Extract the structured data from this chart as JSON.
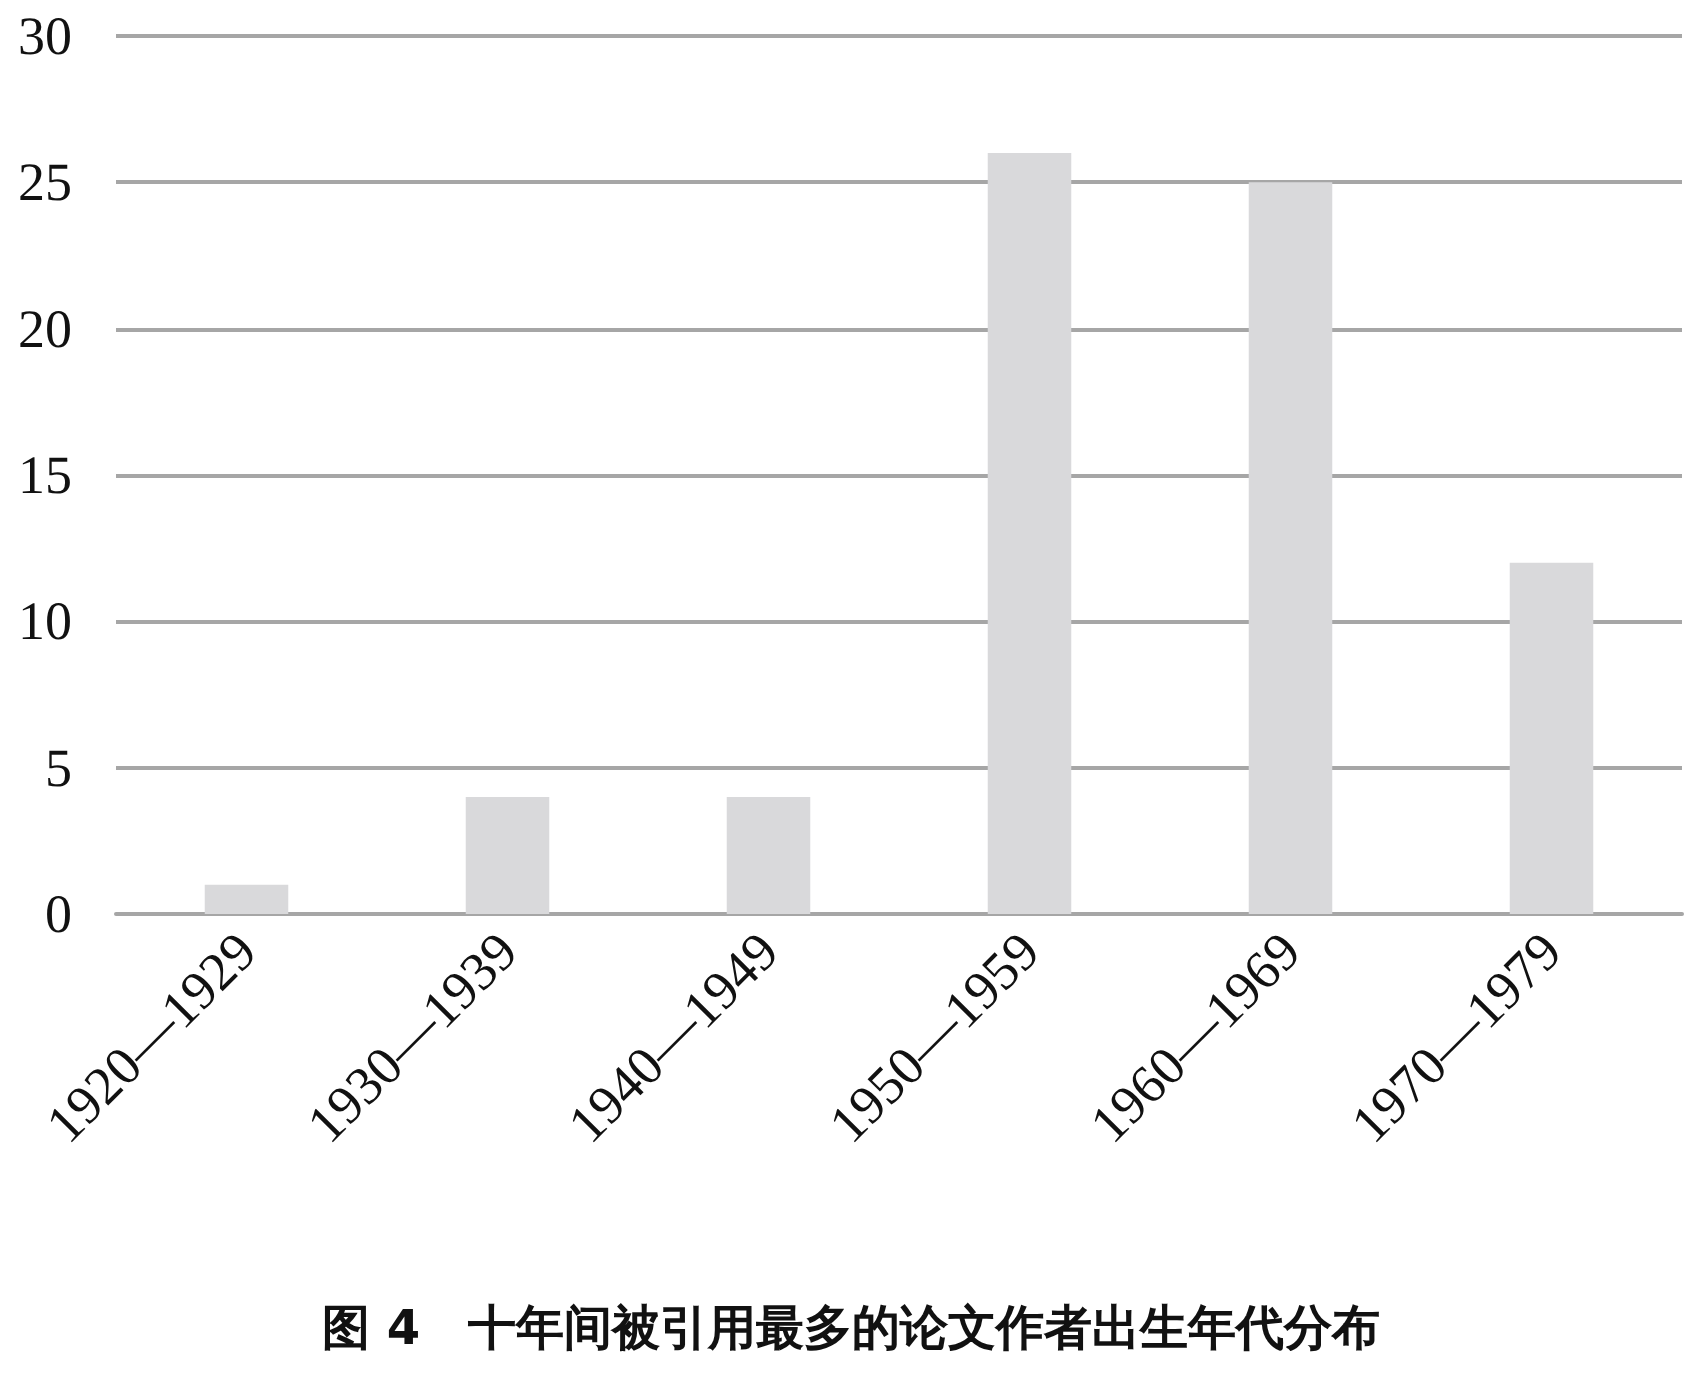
{
  "chart_data": {
    "type": "bar",
    "title": "图 4　十年间被引用最多的论文作者出生年代分布",
    "categories": [
      "1920—1929",
      "1930—1939",
      "1940—1949",
      "1950—1959",
      "1960—1969",
      "1970—1979"
    ],
    "values": [
      1,
      4,
      4,
      26,
      25,
      12
    ],
    "color": "#d9d9db",
    "ylim": [
      0,
      30
    ],
    "yticks": [
      0,
      5,
      10,
      15,
      20,
      25,
      30
    ],
    "grid": "y"
  }
}
